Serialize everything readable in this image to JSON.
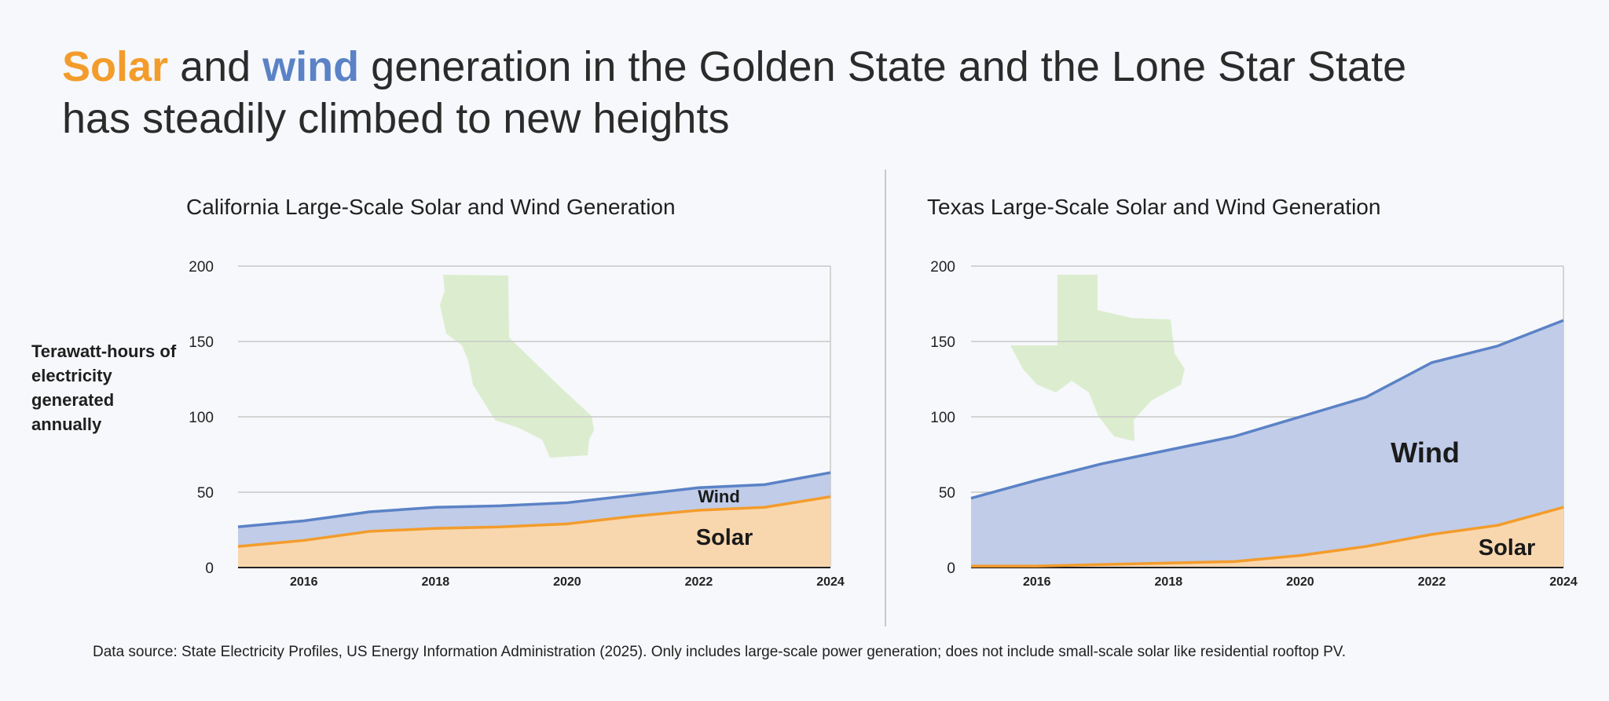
{
  "headline": {
    "solar_word": "Solar",
    "and_word": " and ",
    "wind_word": "wind",
    "rest_line1": " generation in the Golden State and the Lone Star State",
    "line2": "has steadily climbed to new heights"
  },
  "y_axis_label": "Terawatt-hours of electricity generated annually",
  "source_note": "Data source: State Electricity Profiles, US Energy Information Administration (2025).  Only includes large-scale power generation; does not include small-scale solar like residential rooftop PV.",
  "colors": {
    "solar_line": "#f39c2c",
    "solar_fill": "#f9d7ae",
    "wind_line": "#5b82c6",
    "wind_fill": "#c0cce8",
    "state_shape": "#dcedcf",
    "grid": "#c8c8c8"
  },
  "chart_data": [
    {
      "type": "area",
      "stacked": true,
      "title": "California Large-Scale Solar and Wind Generation",
      "x": [
        2015,
        2016,
        2017,
        2018,
        2019,
        2020,
        2021,
        2022,
        2023,
        2024
      ],
      "x_ticks": [
        "2016",
        "2018",
        "2020",
        "2022",
        "2024"
      ],
      "y_ticks": [
        "0",
        "50",
        "100",
        "150",
        "200"
      ],
      "ylim": [
        0,
        200
      ],
      "series": [
        {
          "name": "Solar",
          "label": "Solar",
          "values": [
            14,
            18,
            24,
            26,
            27,
            29,
            34,
            38,
            40,
            47
          ]
        },
        {
          "name": "Wind",
          "label": "Wind",
          "values": [
            13,
            13,
            13,
            14,
            14,
            14,
            14,
            15,
            15,
            16
          ]
        }
      ],
      "state_icon": "california-shape-icon"
    },
    {
      "type": "area",
      "stacked": true,
      "title": "Texas Large-Scale Solar and Wind Generation",
      "x": [
        2015,
        2016,
        2017,
        2018,
        2019,
        2020,
        2021,
        2022,
        2023,
        2024
      ],
      "x_ticks": [
        "2016",
        "2018",
        "2020",
        "2022",
        "2024"
      ],
      "y_ticks": [
        "0",
        "50",
        "100",
        "150",
        "200"
      ],
      "ylim": [
        0,
        200
      ],
      "series": [
        {
          "name": "Solar",
          "label": "Solar",
          "values": [
            1,
            1,
            2,
            3,
            4,
            8,
            14,
            22,
            28,
            40
          ]
        },
        {
          "name": "Wind",
          "label": "Wind",
          "values": [
            45,
            57,
            67,
            75,
            83,
            92,
            99,
            114,
            119,
            124
          ]
        }
      ],
      "state_icon": "texas-shape-icon"
    }
  ]
}
